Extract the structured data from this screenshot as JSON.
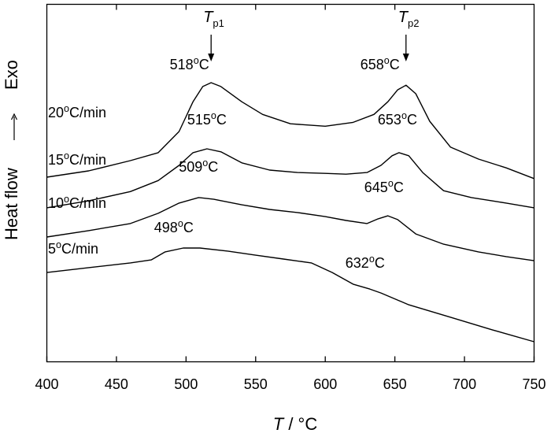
{
  "chart_data": {
    "type": "line",
    "xlabel_italic": "T",
    "xlabel_rest": " / °C",
    "ylabel": "Heat flow",
    "ylabel_direction": "Exo",
    "xlim": [
      400,
      750
    ],
    "xticks": [
      400,
      450,
      500,
      550,
      600,
      650,
      700,
      750
    ],
    "y_ticks_shown": false,
    "grid": false,
    "series": [
      {
        "name": "20°C/min",
        "label_main": "20",
        "label_unit": "°C/min",
        "points": [
          [
            400,
            35.7
          ],
          [
            430,
            38.0
          ],
          [
            460,
            41.7
          ],
          [
            480,
            44.6
          ],
          [
            495,
            52.3
          ],
          [
            505,
            63.1
          ],
          [
            512,
            68.6
          ],
          [
            518,
            70.0
          ],
          [
            525,
            68.6
          ],
          [
            540,
            63.1
          ],
          [
            555,
            58.5
          ],
          [
            575,
            55.1
          ],
          [
            600,
            54.2
          ],
          [
            620,
            55.6
          ],
          [
            635,
            58.5
          ],
          [
            645,
            63.1
          ],
          [
            652,
            67.4
          ],
          [
            658,
            69.1
          ],
          [
            665,
            66.0
          ],
          [
            675,
            56.0
          ],
          [
            690,
            46.6
          ],
          [
            710,
            42.3
          ],
          [
            730,
            39.1
          ],
          [
            750,
            35.2
          ]
        ],
        "peaks": [
          {
            "id": "Tp1",
            "x": 518,
            "label_num": "518",
            "label_unit": "°C",
            "symbol_main": "T",
            "symbol_sub": "p1"
          },
          {
            "id": "Tp2",
            "x": 658,
            "label_num": "658",
            "label_unit": "°C",
            "symbol_main": "T",
            "symbol_sub": "p2"
          }
        ]
      },
      {
        "name": "15°C/min",
        "label_main": "15",
        "label_unit": "°C/min",
        "points": [
          [
            400,
            24.6
          ],
          [
            430,
            27.1
          ],
          [
            460,
            30.5
          ],
          [
            480,
            34.5
          ],
          [
            495,
            40.0
          ],
          [
            505,
            44.6
          ],
          [
            515,
            46.0
          ],
          [
            525,
            44.9
          ],
          [
            540,
            40.9
          ],
          [
            560,
            38.3
          ],
          [
            580,
            37.4
          ],
          [
            600,
            37.1
          ],
          [
            615,
            36.8
          ],
          [
            630,
            37.4
          ],
          [
            640,
            40.0
          ],
          [
            648,
            43.5
          ],
          [
            653,
            44.6
          ],
          [
            660,
            43.5
          ],
          [
            670,
            37.4
          ],
          [
            685,
            30.8
          ],
          [
            705,
            28.3
          ],
          [
            730,
            26.3
          ],
          [
            750,
            24.6
          ]
        ],
        "peaks": [
          {
            "id": "p15a",
            "x": 515,
            "label_num": "515",
            "label_unit": "°C"
          },
          {
            "id": "p15b",
            "x": 653,
            "label_num": "653",
            "label_unit": "°C"
          }
        ]
      },
      {
        "name": "10°C/min",
        "label_main": "10",
        "label_unit": "°C/min",
        "points": [
          [
            400,
            14.0
          ],
          [
            430,
            16.3
          ],
          [
            460,
            18.9
          ],
          [
            480,
            22.6
          ],
          [
            495,
            26.3
          ],
          [
            509,
            28.3
          ],
          [
            520,
            27.7
          ],
          [
            540,
            25.7
          ],
          [
            560,
            24.0
          ],
          [
            580,
            22.9
          ],
          [
            600,
            21.4
          ],
          [
            615,
            20.0
          ],
          [
            630,
            18.9
          ],
          [
            638,
            20.6
          ],
          [
            645,
            21.7
          ],
          [
            652,
            20.3
          ],
          [
            665,
            15.1
          ],
          [
            685,
            11.4
          ],
          [
            710,
            8.6
          ],
          [
            730,
            6.9
          ],
          [
            750,
            5.4
          ]
        ],
        "peaks": [
          {
            "id": "p10a",
            "x": 509,
            "label_num": "509",
            "label_unit": "°C"
          },
          {
            "id": "p10b",
            "x": 645,
            "label_num": "645",
            "label_unit": "°C"
          }
        ]
      },
      {
        "name": "5°C/min",
        "label_main": "5",
        "label_unit": "°C/min",
        "points": [
          [
            400,
            1.1
          ],
          [
            430,
            2.9
          ],
          [
            460,
            4.6
          ],
          [
            475,
            5.7
          ],
          [
            485,
            8.6
          ],
          [
            498,
            10.0
          ],
          [
            510,
            10.0
          ],
          [
            530,
            8.9
          ],
          [
            550,
            7.4
          ],
          [
            570,
            6.0
          ],
          [
            590,
            4.6
          ],
          [
            605,
            1.1
          ],
          [
            620,
            -3.1
          ],
          [
            632,
            -4.9
          ],
          [
            640,
            -6.3
          ],
          [
            660,
            -10.6
          ],
          [
            690,
            -15.1
          ],
          [
            720,
            -19.7
          ],
          [
            750,
            -24.0
          ]
        ],
        "peaks": [
          {
            "id": "p5a",
            "x": 498,
            "label_num": "498",
            "label_unit": "°C"
          },
          {
            "id": "p5b",
            "x": 632,
            "label_num": "632",
            "label_unit": "°C"
          }
        ]
      }
    ]
  }
}
